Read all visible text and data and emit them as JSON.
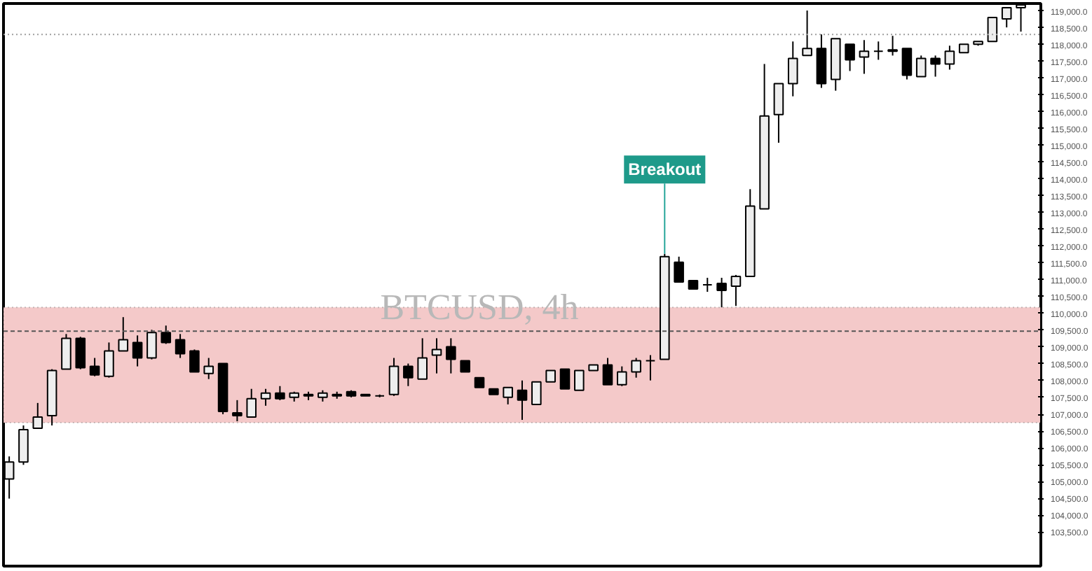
{
  "chart_data": {
    "type": "candlestick",
    "title": "BTCUSD, 4h",
    "categories": [
      null,
      null,
      null,
      null,
      null,
      null,
      null,
      null,
      null,
      null,
      null,
      null,
      null,
      null,
      null,
      null,
      null,
      null,
      null,
      null,
      null,
      null,
      null,
      null,
      null,
      null,
      null,
      null,
      null,
      null,
      null,
      null,
      null,
      null,
      null,
      null,
      null,
      null,
      null,
      null,
      null,
      null,
      null,
      null,
      null,
      null,
      null,
      null,
      null,
      null,
      null,
      null,
      null,
      null,
      null,
      null,
      null,
      null,
      null,
      null,
      null,
      null,
      null,
      null,
      null,
      null,
      null,
      null,
      null,
      null,
      null,
      null
    ],
    "tick_labels": "y",
    "grid": false,
    "ohlc": [
      [
        105077,
        105746,
        104491,
        105579
      ],
      [
        105579,
        106667,
        105495,
        106541
      ],
      [
        106583,
        107336,
        106583,
        106918
      ],
      [
        106959,
        108341,
        106667,
        108299
      ],
      [
        108341,
        109387,
        108341,
        109261
      ],
      [
        109261,
        109303,
        108341,
        108382
      ],
      [
        108424,
        108675,
        108131,
        108173
      ],
      [
        108131,
        109135,
        108089,
        108884
      ],
      [
        108884,
        109889,
        108884,
        109219
      ],
      [
        109135,
        109345,
        108424,
        108675
      ],
      [
        108675,
        109512,
        108633,
        109428
      ],
      [
        109428,
        109638,
        109093,
        109135
      ],
      [
        109219,
        109387,
        108675,
        108801
      ],
      [
        108884,
        108926,
        108257,
        108257
      ],
      [
        108215,
        108675,
        108047,
        108424
      ],
      [
        108508,
        108508,
        107001,
        107085
      ],
      [
        107043,
        107420,
        106792,
        106959
      ],
      [
        106918,
        107755,
        106918,
        107462
      ],
      [
        107462,
        107755,
        107253,
        107629
      ],
      [
        107629,
        107838,
        107420,
        107462
      ],
      [
        107504,
        107671,
        107378,
        107629
      ],
      [
        107587,
        107671,
        107420,
        107545
      ],
      [
        107504,
        107713,
        107378,
        107629
      ],
      [
        107587,
        107671,
        107462,
        107545
      ],
      [
        107671,
        107713,
        107504,
        107545
      ],
      [
        107587,
        107587,
        107545,
        107545
      ],
      [
        107545,
        107587,
        107504,
        107545
      ],
      [
        107587,
        108675,
        107545,
        108424
      ],
      [
        108424,
        108508,
        107838,
        108089
      ],
      [
        108047,
        109261,
        108047,
        108675
      ],
      [
        108759,
        109261,
        108215,
        108926
      ],
      [
        109010,
        109261,
        108215,
        108633
      ],
      [
        108591,
        108591,
        108257,
        108257
      ],
      [
        108089,
        108089,
        107796,
        107796
      ],
      [
        107755,
        107755,
        107587,
        107587
      ],
      [
        107504,
        107796,
        107294,
        107796
      ],
      [
        107713,
        108006,
        106834,
        107420
      ],
      [
        107294,
        107964,
        107294,
        107964
      ],
      [
        107964,
        108299,
        107964,
        108299
      ],
      [
        108341,
        108341,
        107755,
        107755
      ],
      [
        107713,
        108299,
        107713,
        108299
      ],
      [
        108299,
        108466,
        108299,
        108466
      ],
      [
        108466,
        108675,
        107880,
        107880
      ],
      [
        107880,
        108424,
        107838,
        108257
      ],
      [
        108257,
        108675,
        108089,
        108591
      ],
      [
        108591,
        108759,
        108006,
        108591
      ],
      [
        108633,
        111772,
        108633,
        111688
      ],
      [
        111520,
        111688,
        110935,
        110935
      ],
      [
        110977,
        110977,
        110726,
        110726
      ],
      [
        110851,
        111060,
        110642,
        110851
      ],
      [
        110893,
        111060,
        110181,
        110684
      ],
      [
        110809,
        111144,
        110223,
        111102
      ],
      [
        111102,
        113696,
        111102,
        113194
      ],
      [
        113110,
        117420,
        113110,
        115872
      ],
      [
        115914,
        116834,
        115077,
        116834
      ],
      [
        116834,
        118089,
        116458,
        117587
      ],
      [
        117671,
        119010,
        117671,
        117880
      ],
      [
        117880,
        118299,
        116709,
        116834
      ],
      [
        116960,
        118173,
        116625,
        118173
      ],
      [
        118006,
        118006,
        117211,
        117545
      ],
      [
        117629,
        118131,
        117127,
        117796
      ],
      [
        117796,
        118089,
        117545,
        117796
      ],
      [
        117838,
        118257,
        117671,
        117796
      ],
      [
        117880,
        117880,
        116960,
        117085
      ],
      [
        117043,
        117671,
        117043,
        117587
      ],
      [
        117587,
        117671,
        117043,
        117420
      ],
      [
        117420,
        117964,
        117252,
        117796
      ],
      [
        117755,
        118006,
        117755,
        118006
      ],
      [
        118006,
        118089,
        117964,
        118089
      ],
      [
        118089,
        118801,
        118089,
        118801
      ],
      [
        118759,
        119093,
        118508,
        119093
      ],
      [
        119093,
        119177,
        118382,
        119177
      ]
    ],
    "ylim": [
      102483,
      119219
    ],
    "yticks": [
      {
        "value": 103500,
        "label": "103,500.0"
      },
      {
        "value": 104000,
        "label": "104,000.0"
      },
      {
        "value": 104500,
        "label": "104,500.0"
      },
      {
        "value": 105000,
        "label": "105,000.0"
      },
      {
        "value": 105500,
        "label": "105,500.0"
      },
      {
        "value": 106000,
        "label": "106,000.0"
      },
      {
        "value": 106500,
        "label": "106,500.0"
      },
      {
        "value": 107000,
        "label": "107,000.0"
      },
      {
        "value": 107500,
        "label": "107,500.0"
      },
      {
        "value": 108000,
        "label": "108,000.0"
      },
      {
        "value": 108500,
        "label": "108,500.0"
      },
      {
        "value": 109000,
        "label": "109,000.0"
      },
      {
        "value": 109500,
        "label": "109,500.0"
      },
      {
        "value": 110000,
        "label": "110,000.0"
      },
      {
        "value": 110500,
        "label": "110,500.0"
      },
      {
        "value": 111000,
        "label": "111,000.0"
      },
      {
        "value": 111500,
        "label": "111,500.0"
      },
      {
        "value": 112000,
        "label": "112,000.0"
      },
      {
        "value": 112500,
        "label": "112,500.0"
      },
      {
        "value": 113000,
        "label": "113,000.0"
      },
      {
        "value": 113500,
        "label": "113,500.0"
      },
      {
        "value": 114000,
        "label": "114,000.0"
      },
      {
        "value": 114500,
        "label": "114,500.0"
      },
      {
        "value": 115000,
        "label": "115,000.0"
      },
      {
        "value": 115500,
        "label": "115,500.0"
      },
      {
        "value": 116000,
        "label": "116,000.0"
      },
      {
        "value": 116500,
        "label": "116,500.0"
      },
      {
        "value": 117000,
        "label": "117,000.0"
      },
      {
        "value": 117500,
        "label": "117,500.0"
      },
      {
        "value": 118000,
        "label": "118,000.0"
      },
      {
        "value": 118500,
        "label": "118,500.0"
      },
      {
        "value": 119000,
        "label": "119,000.0"
      }
    ],
    "bands": [
      {
        "axis": "y",
        "from": 106750,
        "to": 110181,
        "color": "#f4c9c9"
      }
    ],
    "ref_lines": [
      {
        "axis": "y",
        "value": 109470,
        "line_style": "dashed"
      },
      {
        "axis": "y",
        "value": 118299,
        "line_style": "dotted",
        "color": "#9e9e9e"
      }
    ],
    "annotations": [
      "Breakout"
    ]
  }
}
